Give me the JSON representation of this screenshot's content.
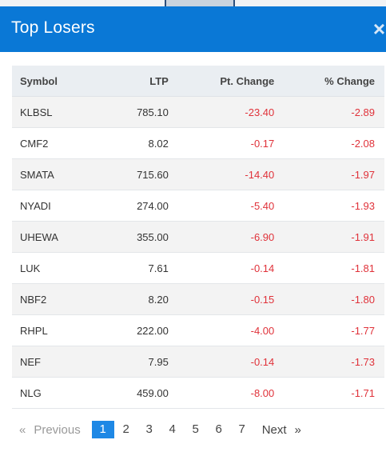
{
  "dialog": {
    "title": "Top Losers",
    "close_glyph": "×"
  },
  "table": {
    "headers": [
      "Symbol",
      "LTP",
      "Pt. Change",
      "% Change"
    ],
    "rows": [
      {
        "symbol": "KLBSL",
        "ltp": "785.10",
        "pt_change": "-23.40",
        "pct_change": "-2.89"
      },
      {
        "symbol": "CMF2",
        "ltp": "8.02",
        "pt_change": "-0.17",
        "pct_change": "-2.08"
      },
      {
        "symbol": "SMATA",
        "ltp": "715.60",
        "pt_change": "-14.40",
        "pct_change": "-1.97"
      },
      {
        "symbol": "NYADI",
        "ltp": "274.00",
        "pt_change": "-5.40",
        "pct_change": "-1.93"
      },
      {
        "symbol": "UHEWA",
        "ltp": "355.00",
        "pt_change": "-6.90",
        "pct_change": "-1.91"
      },
      {
        "symbol": "LUK",
        "ltp": "7.61",
        "pt_change": "-0.14",
        "pct_change": "-1.81"
      },
      {
        "symbol": "NBF2",
        "ltp": "8.20",
        "pt_change": "-0.15",
        "pct_change": "-1.80"
      },
      {
        "symbol": "RHPL",
        "ltp": "222.00",
        "pt_change": "-4.00",
        "pct_change": "-1.77"
      },
      {
        "symbol": "NEF",
        "ltp": "7.95",
        "pt_change": "-0.14",
        "pct_change": "-1.73"
      },
      {
        "symbol": "NLG",
        "ltp": "459.00",
        "pt_change": "-8.00",
        "pct_change": "-1.71"
      }
    ]
  },
  "pagination": {
    "prev_arrow": "«",
    "prev_label": "Previous",
    "pages": [
      "1",
      "2",
      "3",
      "4",
      "5",
      "6",
      "7"
    ],
    "current_page": "1",
    "next_label": "Next",
    "next_arrow": "»"
  },
  "colors": {
    "header_bg": "#0a78d6",
    "negative": "#e0323a",
    "active_page": "#1e88e5"
  }
}
